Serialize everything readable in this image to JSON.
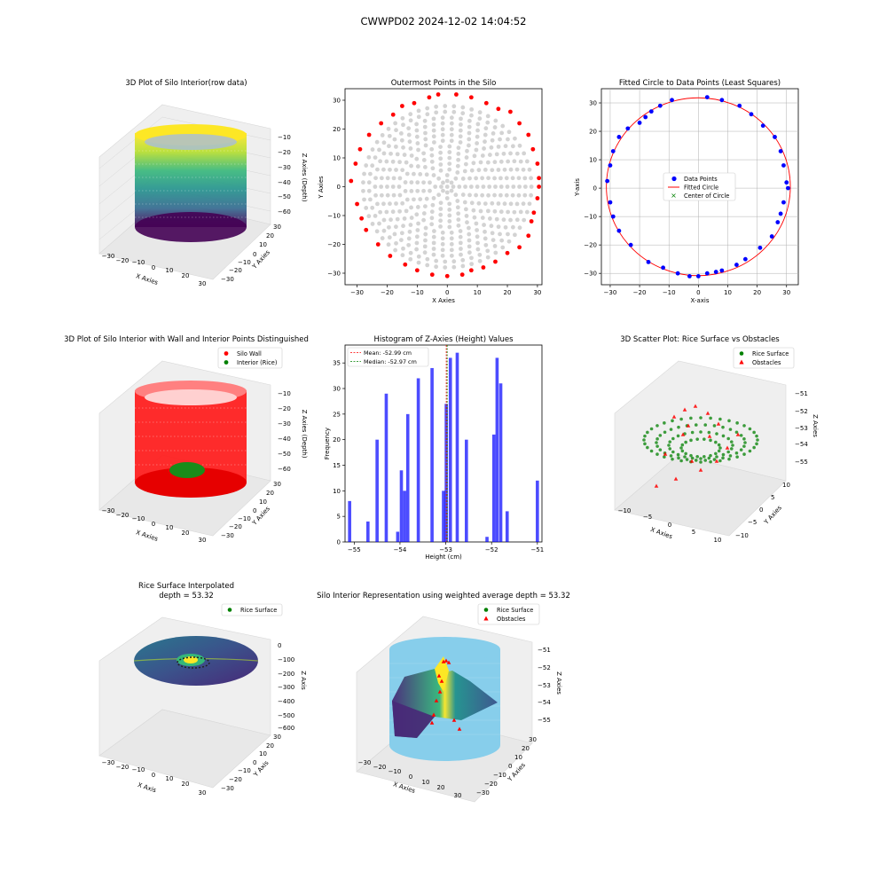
{
  "figure": {
    "suptitle": "CWWPD02 2024-12-02 14:04:52"
  },
  "chart_data": [
    {
      "id": "p1",
      "type": "scatter",
      "projection": "3d",
      "title": "3D Plot of Silo Interior(row data)",
      "xlabel": "X Axies",
      "ylabel": "Y Axies",
      "zlabel": "Z Axies (Depth)",
      "xticks": [
        "−30",
        "−20",
        "−10",
        "0",
        "10",
        "20",
        "30"
      ],
      "yticks": [
        "30",
        "20",
        "10",
        "0",
        "−10",
        "−20",
        "−30"
      ],
      "zticks": [
        "−10",
        "−20",
        "−30",
        "−40",
        "−50",
        "−60"
      ],
      "xlim": [
        -32,
        32
      ],
      "ylim": [
        -32,
        32
      ],
      "zlim": [
        -62,
        -5
      ],
      "colormap": "viridis",
      "description_values": {
        "radius": 31.5,
        "z_top": -8,
        "z_bottom": -60
      }
    },
    {
      "id": "p2",
      "type": "scatter",
      "title": "Outermost Points in the Silo",
      "xlabel": "X Axies",
      "ylabel": "Y Axies",
      "xticks": [
        -30,
        -20,
        -10,
        0,
        10,
        20,
        30
      ],
      "yticks": [
        30,
        20,
        10,
        0,
        -10,
        -20,
        -30
      ],
      "xlim": [
        -34,
        31.5
      ],
      "ylim": [
        -34,
        34
      ],
      "series": [
        {
          "color": "#d3d3d3",
          "rings": [
            2,
            4,
            6,
            8,
            10,
            12,
            14,
            16,
            18,
            20,
            22,
            24,
            26,
            28
          ]
        },
        {
          "color": "#ff0000",
          "points": [
            [
              3,
              32
            ],
            [
              8,
              31
            ],
            [
              13,
              29
            ],
            [
              17,
              27
            ],
            [
              21,
              26
            ],
            [
              24,
              22
            ],
            [
              27,
              18
            ],
            [
              28.5,
              13
            ],
            [
              30,
              8
            ],
            [
              30.5,
              3
            ],
            [
              30.5,
              0
            ],
            [
              30,
              -4
            ],
            [
              28.8,
              -9
            ],
            [
              28,
              -12
            ],
            [
              27,
              -17
            ],
            [
              24,
              -21
            ],
            [
              20,
              -23
            ],
            [
              16,
              -26
            ],
            [
              12,
              -28
            ],
            [
              8,
              -29
            ],
            [
              5,
              -30.5
            ],
            [
              0,
              -31
            ],
            [
              -5,
              -30.5
            ],
            [
              -10,
              -29
            ],
            [
              -14,
              -27
            ],
            [
              -19,
              -24
            ],
            [
              -23,
              -20
            ],
            [
              -27,
              -15
            ],
            [
              -28.5,
              -11
            ],
            [
              -30,
              -6
            ],
            [
              -32,
              2
            ],
            [
              -30.5,
              8
            ],
            [
              -29,
              13
            ],
            [
              -26,
              18
            ],
            [
              -22,
              22
            ],
            [
              -18,
              25
            ],
            [
              -15,
              28
            ],
            [
              -11,
              29
            ],
            [
              -6,
              31
            ],
            [
              -3,
              32
            ]
          ]
        }
      ]
    },
    {
      "id": "p3",
      "type": "scatter",
      "title": "Fitted Circle to Data Points (Least Squares)",
      "xlabel": "X-axis",
      "ylabel": "Y-axis",
      "xticks": [
        -30,
        -20,
        -10,
        0,
        10,
        20,
        30
      ],
      "yticks": [
        30,
        20,
        10,
        0,
        -10,
        -20,
        -30
      ],
      "xlim": [
        -33,
        34
      ],
      "ylim": [
        -34,
        35
      ],
      "grid": true,
      "legend": [
        "Data Points",
        "Fitted Circle",
        "Center of Circle"
      ],
      "legend_position": "center",
      "circle": {
        "cx": 0,
        "cy": 0.5,
        "r": 31.3
      },
      "points": [
        [
          -31,
          2.5
        ],
        [
          -30,
          -5
        ],
        [
          -29,
          -10
        ],
        [
          -27,
          -15
        ],
        [
          -23,
          -20
        ],
        [
          -17,
          -26
        ],
        [
          -12,
          -28
        ],
        [
          -7,
          -30
        ],
        [
          -3,
          -31
        ],
        [
          0,
          -31
        ],
        [
          3,
          -30
        ],
        [
          6,
          -29.5
        ],
        [
          8,
          -29
        ],
        [
          13,
          -27
        ],
        [
          16,
          -25
        ],
        [
          21,
          -21
        ],
        [
          25,
          -17
        ],
        [
          27,
          -12
        ],
        [
          28,
          -9
        ],
        [
          29,
          -5
        ],
        [
          30.5,
          0
        ],
        [
          30,
          2
        ],
        [
          29,
          8
        ],
        [
          28,
          13
        ],
        [
          26,
          18
        ],
        [
          22,
          22
        ],
        [
          18,
          26
        ],
        [
          14,
          29
        ],
        [
          8,
          31
        ],
        [
          3,
          32
        ],
        [
          -9,
          31
        ],
        [
          -13,
          29
        ],
        [
          -16,
          27
        ],
        [
          -18,
          25
        ],
        [
          -20,
          23
        ],
        [
          -24,
          21
        ],
        [
          -27,
          18
        ],
        [
          -29,
          13
        ],
        [
          -30,
          8
        ]
      ]
    },
    {
      "id": "p4",
      "type": "scatter",
      "projection": "3d",
      "title": "3D Plot of Silo Interior with Wall and Interior Points Distinguished",
      "xlabel": "X Axies",
      "ylabel": "Y Axies",
      "zlabel": "Z Axies (Depth)",
      "xticks": [
        "−30",
        "−20",
        "−10",
        "0",
        "10",
        "20",
        "30"
      ],
      "yticks": [
        "30",
        "20",
        "10",
        "0",
        "−10",
        "−20",
        "−30"
      ],
      "zticks": [
        "−10",
        "−20",
        "−30",
        "−40",
        "−50",
        "−60"
      ],
      "legend": [
        "Silo Wall",
        "Interior (Rice)"
      ],
      "colors": [
        "#ff0000",
        "#008000"
      ]
    },
    {
      "id": "p5",
      "type": "bar",
      "title": "Histogram of Z-Axies (Height) Values",
      "xlabel": "Height (cm)",
      "ylabel": "Frequency",
      "xticks": [
        -55,
        -54,
        -53,
        -52,
        -51
      ],
      "yticks": [
        0,
        5,
        10,
        15,
        20,
        25,
        30,
        35
      ],
      "xlim": [
        -55.2,
        -50.9
      ],
      "ylim": [
        0,
        38.5
      ],
      "bin_width": 0.07,
      "bins": [
        [
          -55.1,
          8
        ],
        [
          -54.7,
          4
        ],
        [
          -54.5,
          20
        ],
        [
          -54.3,
          29
        ],
        [
          -54.05,
          2
        ],
        [
          -53.97,
          14
        ],
        [
          -53.9,
          10
        ],
        [
          -53.83,
          25
        ],
        [
          -53.6,
          32
        ],
        [
          -53.3,
          34
        ],
        [
          -53.05,
          10
        ],
        [
          -52.99,
          27
        ],
        [
          -52.9,
          36
        ],
        [
          -52.75,
          37
        ],
        [
          -52.55,
          20
        ],
        [
          -52.1,
          1
        ],
        [
          -51.95,
          21
        ],
        [
          -51.88,
          36
        ],
        [
          -51.8,
          31
        ],
        [
          -51.66,
          6
        ],
        [
          -51.0,
          12
        ]
      ],
      "color": "#0000ff",
      "mean": -52.99,
      "median": -52.97,
      "legend": [
        "Mean: -52.99 cm",
        "Median: -52.97 cm"
      ]
    },
    {
      "id": "p6",
      "type": "scatter",
      "projection": "3d",
      "title": "3D Scatter Plot: Rice Surface vs Obstacles",
      "xlabel": "X Axies",
      "ylabel": "Y Axies",
      "zlabel": "Z Axies",
      "xticks": [
        "−10",
        "−5",
        "0",
        "5",
        "10"
      ],
      "yticks": [
        "10",
        "5",
        "0",
        "−5",
        "−10"
      ],
      "zticks": [
        "−51",
        "−52",
        "−53",
        "−54",
        "−55"
      ],
      "legend": [
        "Rice Surface",
        "Obstacles"
      ],
      "colors": [
        "#008000",
        "#ff0000"
      ]
    },
    {
      "id": "p7",
      "type": "surface",
      "projection": "3d",
      "title": "Rice Surface Interpolated",
      "subtitle": "depth = 53.32",
      "xlabel": "X Axis",
      "ylabel": "Y Axis",
      "zlabel": "Z Axis",
      "xticks": [
        "−30",
        "−20",
        "−10",
        "0",
        "10",
        "20",
        "30"
      ],
      "yticks": [
        "30",
        "20",
        "10",
        "0",
        "−10",
        "−20",
        "−30"
      ],
      "zticks": [
        "0",
        "−100",
        "−200",
        "−300",
        "−400",
        "−500",
        "−600"
      ],
      "legend": [
        "Rice Surface"
      ]
    },
    {
      "id": "p8",
      "type": "surface",
      "projection": "3d",
      "title": "Silo Interior Representation using weighted average depth = 53.32",
      "xlabel": "X Axies",
      "ylabel": "Y Axies",
      "zlabel": "Z Axies",
      "xticks": [
        "−30",
        "−20",
        "−10",
        "0",
        "10",
        "20",
        "30"
      ],
      "yticks": [
        "30",
        "20",
        "10",
        "0",
        "−10",
        "−20",
        "−30"
      ],
      "zticks": [
        "−51",
        "−52",
        "−53",
        "−54",
        "−55"
      ],
      "legend": [
        "Rice Surface",
        "Obstacles"
      ],
      "colors": [
        "#008000",
        "#ff0000",
        "#87ceeb"
      ]
    }
  ]
}
